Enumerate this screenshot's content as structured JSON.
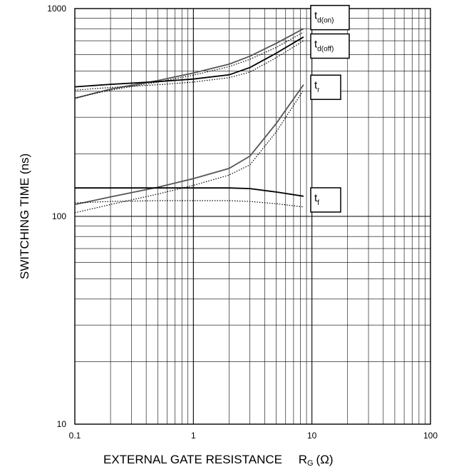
{
  "chart_data": {
    "type": "line",
    "xlabel_main": "EXTERNAL GATE RESISTANCE",
    "xlabel_symbol": "R",
    "xlabel_subscript": "G",
    "xlabel_unit": "(Ω)",
    "ylabel": "SWITCHING TIME   (ns)",
    "x_scale": "log",
    "y_scale": "log",
    "xlim": [
      0.1,
      100
    ],
    "ylim": [
      10,
      1000
    ],
    "x_ticks": [
      {
        "value": 0.1,
        "label": "0.1"
      },
      {
        "value": 1,
        "label": "1"
      },
      {
        "value": 10,
        "label": "10"
      },
      {
        "value": 100,
        "label": "100"
      }
    ],
    "y_ticks": [
      {
        "value": 10,
        "label": "10"
      },
      {
        "value": 100,
        "label": "100"
      },
      {
        "value": 1000,
        "label": "1000"
      }
    ],
    "grid": true,
    "curve_labels": [
      {
        "main": "t",
        "sub": "d(on)",
        "y_value": 905
      },
      {
        "main": "t",
        "sub": "d(off)",
        "y_value": 660
      },
      {
        "main": "t",
        "sub": "r",
        "y_value": 418
      },
      {
        "main": "t",
        "sub": "f",
        "y_value": 120
      }
    ],
    "series": [
      {
        "label_ref": "t d(on)",
        "color": "#555555",
        "style": "solid",
        "x": [
          0.1,
          0.2,
          0.5,
          1,
          2,
          3,
          5,
          8.5
        ],
        "y": [
          370,
          410,
          450,
          490,
          540,
          590,
          680,
          800
        ]
      },
      {
        "label_ref": "t d(on)",
        "color": "#000000",
        "style": "dotted",
        "x": [
          0.1,
          0.2,
          0.5,
          1,
          2,
          3,
          5,
          8.5
        ],
        "y": [
          372,
          405,
          443,
          478,
          525,
          570,
          650,
          770
        ]
      },
      {
        "label_ref": "t d(off)",
        "color": "#000000",
        "style": "solid",
        "x": [
          0.1,
          0.2,
          0.5,
          1,
          2,
          3,
          5,
          8.5
        ],
        "y": [
          420,
          432,
          445,
          458,
          480,
          520,
          610,
          730
        ]
      },
      {
        "label_ref": "t d(off)",
        "color": "#000000",
        "style": "dotted",
        "x": [
          0.1,
          0.2,
          0.5,
          1,
          2,
          3,
          5,
          8.5
        ],
        "y": [
          405,
          417,
          430,
          443,
          465,
          495,
          580,
          700
        ]
      },
      {
        "label_ref": "t r",
        "color": "#555555",
        "style": "solid",
        "x": [
          0.1,
          0.2,
          0.5,
          1,
          2,
          3,
          5,
          8.5
        ],
        "y": [
          114,
          124,
          138,
          152,
          170,
          195,
          280,
          430
        ]
      },
      {
        "label_ref": "t r",
        "color": "#000000",
        "style": "dotted",
        "x": [
          0.1,
          0.2,
          0.5,
          1,
          2,
          3,
          5,
          8.5
        ],
        "y": [
          104,
          114,
          128,
          141,
          158,
          177,
          255,
          405
        ]
      },
      {
        "label_ref": "t f",
        "color": "#000000",
        "style": "solid",
        "x": [
          0.1,
          0.2,
          0.5,
          1,
          2,
          3,
          5,
          8.5
        ],
        "y": [
          137,
          137,
          137,
          137,
          137,
          136,
          131,
          125
        ]
      },
      {
        "label_ref": "t f",
        "color": "#000000",
        "style": "dotted",
        "x": [
          0.1,
          0.2,
          0.5,
          1,
          2,
          3,
          5,
          8.5
        ],
        "y": [
          116,
          118,
          119,
          119,
          119,
          118,
          115,
          111
        ]
      }
    ]
  }
}
